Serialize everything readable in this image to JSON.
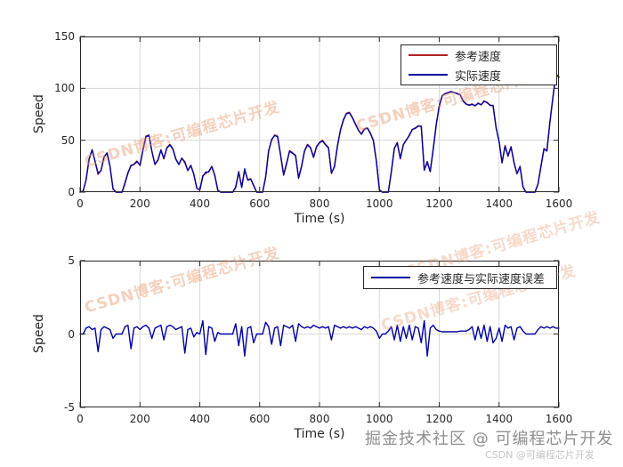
{
  "figure": {
    "background": "#ffffff",
    "axis_color": "#262626",
    "grid_color": "#d8d8d8"
  },
  "overlays": {
    "diagonal_watermark": "CSDN博客:可编程芯片开发",
    "watermark_color": "#e8966b",
    "footer_main": "掘金技术社区 @ 可编程芯片开发",
    "footer_sub": "CSDN @可编程芯片开发"
  },
  "chart_data": [
    {
      "type": "line",
      "title": "",
      "xlabel": "Time (s)",
      "ylabel": "Speed",
      "xlim": [
        0,
        1600
      ],
      "ylim": [
        0,
        150
      ],
      "xticks": [
        0,
        200,
        400,
        600,
        800,
        1000,
        1200,
        1400,
        1600
      ],
      "yticks": [
        0,
        50,
        100,
        150
      ],
      "grid": true,
      "legend_position": "top-right",
      "x": [
        0,
        10,
        20,
        30,
        40,
        50,
        60,
        70,
        80,
        90,
        100,
        110,
        120,
        130,
        140,
        150,
        160,
        170,
        180,
        190,
        200,
        210,
        220,
        230,
        240,
        250,
        260,
        270,
        280,
        290,
        300,
        310,
        320,
        330,
        340,
        350,
        360,
        370,
        380,
        390,
        400,
        410,
        420,
        430,
        440,
        450,
        460,
        470,
        480,
        490,
        500,
        510,
        520,
        530,
        540,
        550,
        560,
        570,
        580,
        590,
        600,
        610,
        620,
        630,
        640,
        650,
        660,
        670,
        680,
        690,
        700,
        710,
        720,
        730,
        740,
        750,
        760,
        770,
        780,
        790,
        800,
        810,
        820,
        830,
        840,
        850,
        860,
        870,
        880,
        890,
        900,
        910,
        920,
        930,
        940,
        950,
        960,
        970,
        980,
        990,
        1000,
        1010,
        1020,
        1030,
        1040,
        1050,
        1060,
        1070,
        1080,
        1090,
        1100,
        1110,
        1120,
        1130,
        1140,
        1150,
        1160,
        1170,
        1180,
        1190,
        1200,
        1210,
        1220,
        1230,
        1240,
        1250,
        1260,
        1270,
        1280,
        1290,
        1300,
        1310,
        1320,
        1330,
        1340,
        1350,
        1360,
        1370,
        1380,
        1390,
        1400,
        1410,
        1420,
        1430,
        1440,
        1450,
        1460,
        1470,
        1480,
        1490,
        1500,
        1510,
        1520,
        1530,
        1540,
        1550,
        1560,
        1570,
        1580,
        1590,
        1600
      ],
      "series": [
        {
          "name": "参考速度",
          "color": "#b22222",
          "values": [
            0,
            1,
            12,
            32,
            41,
            30,
            17,
            21,
            34,
            38,
            25,
            3,
            0,
            0,
            0,
            9,
            19,
            25,
            27,
            30,
            26,
            41,
            54,
            55,
            39,
            27,
            31,
            41,
            32,
            43,
            46,
            42,
            32,
            27,
            33,
            28,
            21,
            26,
            17,
            4,
            2,
            16,
            18,
            20,
            25,
            16,
            2,
            0,
            0,
            0,
            0,
            0,
            5,
            19,
            5,
            21,
            12,
            13,
            6,
            0,
            0,
            0,
            15,
            40,
            50,
            55,
            54,
            35,
            17,
            28,
            40,
            38,
            35,
            14,
            25,
            40,
            46,
            43,
            34,
            44,
            48,
            50,
            46,
            43,
            18,
            25,
            45,
            60,
            70,
            76,
            77,
            72,
            66,
            60,
            56,
            61,
            62,
            57,
            50,
            30,
            2,
            0,
            0,
            0,
            20,
            42,
            48,
            32,
            46,
            50,
            55,
            60,
            62,
            64,
            63,
            22,
            28,
            20,
            42,
            65,
            83,
            93,
            95,
            96,
            97,
            96,
            95,
            94,
            88,
            85,
            84,
            85,
            83,
            86,
            84,
            88,
            86,
            84,
            83,
            62,
            49,
            28,
            45,
            35,
            44,
            28,
            18,
            25,
            5,
            0,
            0,
            0,
            0,
            8,
            25,
            42,
            40,
            68,
            92,
            114,
            111
          ]
        },
        {
          "name": "实际速度",
          "color": "#0000a0",
          "values": [
            0,
            1,
            11.6,
            31.5,
            40.7,
            29.6,
            18.2,
            20.7,
            33.5,
            37.6,
            24.7,
            3.3,
            0,
            0,
            0,
            8.5,
            18.4,
            26,
            26.6,
            29.5,
            25.7,
            40.5,
            53.4,
            54.6,
            39.3,
            26.6,
            30.5,
            40.4,
            32.4,
            42.5,
            45.4,
            41.5,
            31.7,
            26.6,
            32.5,
            29.3,
            20.7,
            25.6,
            17.2,
            3.9,
            2,
            15.1,
            19.4,
            19.5,
            24.6,
            16.5,
            1.9,
            0,
            0,
            0,
            0,
            0,
            4.3,
            19.8,
            4.5,
            22.5,
            11.6,
            12.5,
            6.6,
            0,
            0,
            0,
            14.2,
            39.5,
            50.7,
            54.6,
            53.5,
            35.8,
            16.4,
            27.5,
            39.6,
            37.4,
            35.5,
            13.3,
            24.5,
            39.6,
            45.5,
            42.6,
            33.4,
            43.5,
            47.6,
            49.5,
            45.6,
            42.5,
            18.4,
            24.4,
            44.5,
            59.6,
            69.5,
            75.6,
            76.5,
            71.6,
            65.5,
            59.6,
            55.7,
            60.5,
            61.6,
            56.5,
            49.6,
            29.8,
            2.3,
            0,
            0,
            0,
            19.5,
            42.4,
            47.4,
            32.5,
            45.5,
            50.3,
            54.4,
            60.4,
            61.5,
            63.6,
            63.6,
            21.1,
            29.5,
            19.6,
            41.4,
            64.7,
            82.8,
            92.9,
            94.9,
            95.9,
            96.9,
            95.9,
            94.9,
            93.8,
            87.8,
            84.8,
            83.7,
            84.5,
            83.4,
            85.5,
            84.3,
            87.4,
            86.5,
            83.5,
            83.6,
            62.3,
            48.6,
            28.5,
            44.4,
            34.6,
            43.5,
            28.4,
            17.6,
            24.5,
            4.8,
            0,
            0,
            0,
            0,
            7.7,
            24.5,
            41.6,
            39.5,
            67.6,
            91.5,
            113.6,
            110.6
          ]
        }
      ]
    },
    {
      "type": "line",
      "title": "",
      "xlabel": "Time (s)",
      "ylabel": "Speed",
      "xlim": [
        0,
        1600
      ],
      "ylim": [
        -5,
        5
      ],
      "xticks": [
        0,
        200,
        400,
        600,
        800,
        1000,
        1200,
        1400,
        1600
      ],
      "yticks": [
        -5,
        0,
        5
      ],
      "grid": true,
      "legend_position": "top-right",
      "x": [
        0,
        10,
        20,
        30,
        40,
        50,
        60,
        70,
        80,
        90,
        100,
        110,
        120,
        130,
        140,
        150,
        160,
        170,
        180,
        190,
        200,
        210,
        220,
        230,
        240,
        250,
        260,
        270,
        280,
        290,
        300,
        310,
        320,
        330,
        340,
        350,
        360,
        370,
        380,
        390,
        400,
        410,
        420,
        430,
        440,
        450,
        460,
        470,
        480,
        490,
        500,
        510,
        520,
        530,
        540,
        550,
        560,
        570,
        580,
        590,
        600,
        610,
        620,
        630,
        640,
        650,
        660,
        670,
        680,
        690,
        700,
        710,
        720,
        730,
        740,
        750,
        760,
        770,
        780,
        790,
        800,
        810,
        820,
        830,
        840,
        850,
        860,
        870,
        880,
        890,
        900,
        910,
        920,
        930,
        940,
        950,
        960,
        970,
        980,
        990,
        1000,
        1010,
        1020,
        1030,
        1040,
        1050,
        1060,
        1070,
        1080,
        1090,
        1100,
        1110,
        1120,
        1130,
        1140,
        1150,
        1160,
        1170,
        1180,
        1190,
        1200,
        1210,
        1220,
        1230,
        1240,
        1250,
        1260,
        1270,
        1280,
        1290,
        1300,
        1310,
        1320,
        1330,
        1340,
        1350,
        1360,
        1370,
        1380,
        1390,
        1400,
        1410,
        1420,
        1430,
        1440,
        1450,
        1460,
        1470,
        1480,
        1490,
        1500,
        1510,
        1520,
        1530,
        1540,
        1550,
        1560,
        1570,
        1580,
        1590,
        1600
      ],
      "series": [
        {
          "name": "参考速度与实际速度误差",
          "color": "#0000a0",
          "values": [
            0,
            0,
            0.4,
            0.5,
            0.3,
            0.4,
            -1.2,
            0.3,
            0.5,
            0.4,
            0.3,
            -0.3,
            0,
            0,
            0,
            0.5,
            0.6,
            -1.0,
            0.4,
            0.5,
            0.3,
            0.5,
            0.6,
            0.4,
            -0.3,
            0.4,
            0.5,
            0.6,
            -0.4,
            0.5,
            0.6,
            0.5,
            0.3,
            0.4,
            0.5,
            -1.3,
            0.3,
            0.4,
            -0.2,
            0.1,
            0,
            0.9,
            -1.4,
            0.5,
            0.4,
            -0.5,
            0.1,
            0,
            0,
            0,
            0,
            0,
            0.7,
            -0.8,
            0.5,
            -1.5,
            0.4,
            0.5,
            -0.6,
            0,
            0,
            0,
            0.8,
            0.5,
            -0.7,
            0.4,
            0.5,
            -0.8,
            0.6,
            0.5,
            0.4,
            0.6,
            -0.5,
            0.7,
            0.5,
            0.4,
            0.5,
            0.4,
            0.6,
            0.5,
            0.4,
            0.5,
            0.4,
            0.5,
            -0.4,
            0.6,
            0.5,
            0.4,
            0.5,
            0.4,
            0.5,
            0.4,
            0.5,
            0.4,
            0.3,
            0.5,
            0.4,
            0.5,
            0.4,
            0.2,
            -0.3,
            0,
            0,
            0.2,
            0.5,
            -0.4,
            0.6,
            -0.5,
            0.5,
            -0.3,
            0.6,
            -0.4,
            0.5,
            0.4,
            -0.6,
            0.9,
            -1.5,
            0.4,
            0.6,
            0.3,
            0.2,
            0.15,
            0.15,
            0.15,
            0.15,
            0.15,
            0.15,
            0.2,
            0.2,
            0.2,
            0.3,
            0.5,
            -0.4,
            0.5,
            -0.3,
            0.6,
            -0.5,
            0.5,
            -0.6,
            -0.3,
            0.4,
            -0.5,
            0.6,
            0.4,
            0.5,
            -0.4,
            0.4,
            0.5,
            0.2,
            0,
            0,
            0,
            0,
            0.3,
            0.5,
            0.4,
            0.5,
            0.4,
            0.5,
            0.4,
            0.4
          ]
        }
      ]
    }
  ]
}
